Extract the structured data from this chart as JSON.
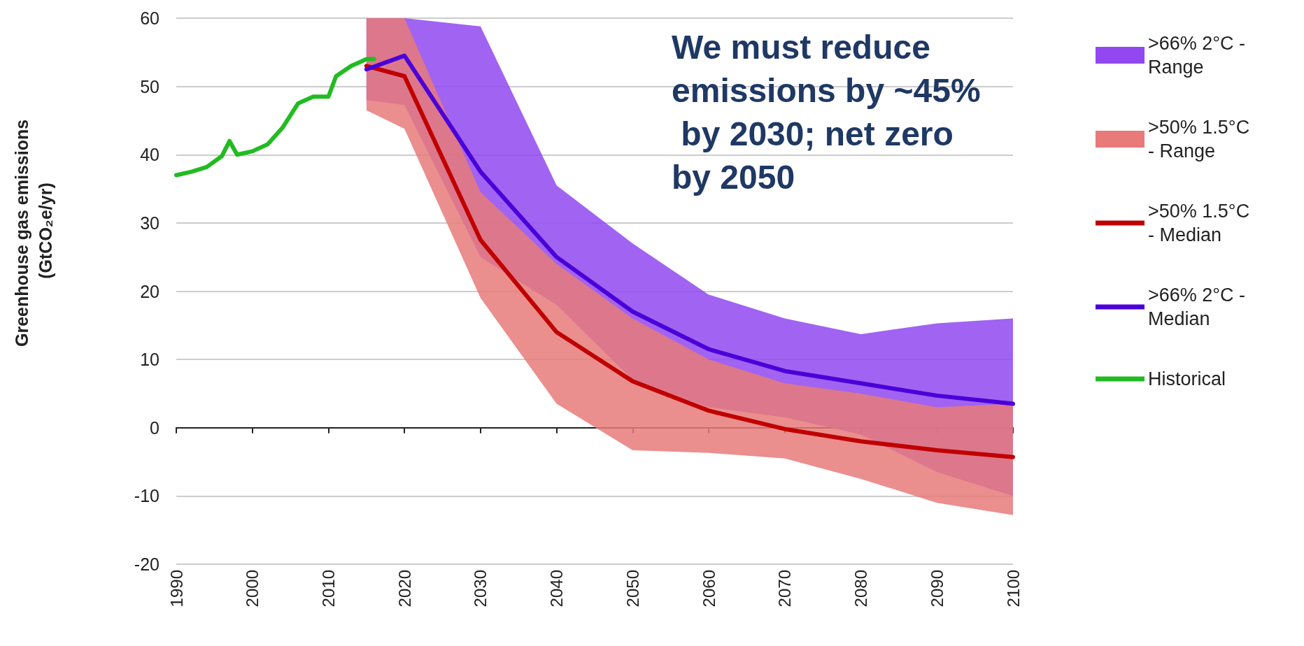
{
  "chart_data": {
    "type": "line",
    "ylabel": "Greenhouse gas emissions (GtCO₂e/yr)",
    "annotations": [
      "We must reduce emissions by ~45% by 2030; net zero by 2050"
    ],
    "xlim": [
      1990,
      2100
    ],
    "xticks": [
      1990,
      2000,
      2010,
      2020,
      2030,
      2040,
      2050,
      2060,
      2070,
      2080,
      2090,
      2100
    ],
    "ylim": [
      -20,
      60
    ],
    "yticks": [
      -20,
      -10,
      0,
      10,
      20,
      30,
      40,
      50,
      60
    ],
    "grid": "y",
    "legend": "right",
    "marker": "none",
    "line_style": "solid",
    "series": [
      {
        "name": ">66% 2°C - Range",
        "type": "line",
        "color": "#9148f0",
        "x": [
          2015,
          2020,
          2030,
          2040,
          2050,
          2060,
          2070,
          2080,
          2090,
          2100
        ],
        "values": [
          null,
          null,
          null,
          null,
          null,
          null,
          null,
          null,
          null,
          null
        ],
        "lower": [
          48,
          47.3,
          25,
          18,
          7,
          3,
          1.5,
          -1,
          -6.5,
          -10
        ],
        "upper": [
          60,
          60,
          58.8,
          35.5,
          27,
          19.5,
          16,
          13.7,
          15.3,
          16
        ]
      },
      {
        "name": ">50% 1.5°C - Range",
        "type": "line",
        "color": "#e87a7a",
        "x": [
          2015,
          2020,
          2030,
          2040,
          2050,
          2060,
          2070,
          2080,
          2090,
          2100
        ],
        "values": [
          null,
          null,
          null,
          null,
          null,
          null,
          null,
          null,
          null,
          null
        ],
        "lower": [
          46.5,
          43.8,
          19,
          3.5,
          -3.3,
          -3.7,
          -4.5,
          -7.5,
          -11,
          -12.8
        ],
        "upper": [
          60,
          60,
          34.5,
          24,
          16,
          10,
          6.5,
          5,
          3,
          3.5
        ]
      },
      {
        "name": ">50% 1.5°C - Median",
        "type": "line",
        "color": "#c00000",
        "x": [
          2015,
          2020,
          2030,
          2040,
          2050,
          2060,
          2070,
          2080,
          2090,
          2100
        ],
        "values": [
          53,
          51.5,
          27.5,
          14,
          6.8,
          2.5,
          -0.2,
          -2,
          -3.3,
          -4.3
        ]
      },
      {
        "name": ">66% 2°C - Median",
        "type": "line",
        "color": "#4a00d8",
        "x": [
          2015,
          2020,
          2030,
          2040,
          2050,
          2060,
          2070,
          2080,
          2090,
          2100
        ],
        "values": [
          52.5,
          54.5,
          37.5,
          25,
          17,
          11.5,
          8.3,
          6.5,
          4.7,
          3.5
        ]
      },
      {
        "name": "Historical",
        "type": "line",
        "color": "#22bb22",
        "x": [
          1990,
          1992,
          1994,
          1996,
          1997,
          1998,
          2000,
          2002,
          2004,
          2006,
          2008,
          2010,
          2011,
          2013,
          2015,
          2016
        ],
        "values": [
          37,
          37.5,
          38.2,
          39.8,
          42,
          40,
          40.5,
          41.5,
          44,
          47.5,
          48.5,
          48.5,
          51.5,
          53,
          54,
          54
        ]
      }
    ]
  }
}
